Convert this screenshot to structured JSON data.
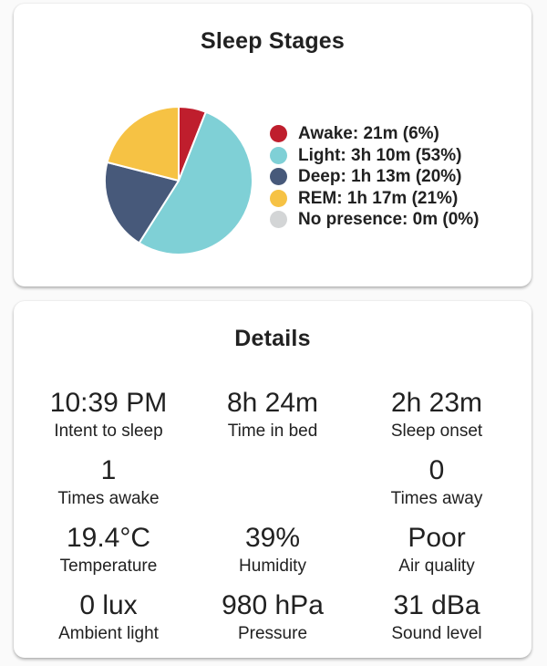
{
  "colors": {
    "page_bg": "#fafafa",
    "card_bg": "#ffffff",
    "text": "#212121",
    "awake_red": "#bf1e2d",
    "light_teal": "#7fd0d6",
    "deep_slate": "#47597a",
    "rem_amber": "#f6c244",
    "no_presence_gray": "#d3d5d6"
  },
  "sleep_card": {
    "title": "Sleep Stages"
  },
  "chart_data": {
    "type": "pie",
    "title": "Sleep Stages",
    "start_angle": "top",
    "direction": "clockwise",
    "legend_position": "right",
    "legend_format": "{label}: {duration} ({percent}%)",
    "slices": [
      {
        "label": "Awake",
        "duration": "21m",
        "percent": 6,
        "color": "#bf1e2d"
      },
      {
        "label": "Light",
        "duration": "3h 10m",
        "percent": 53,
        "color": "#7fd0d6"
      },
      {
        "label": "Deep",
        "duration": "1h 13m",
        "percent": 20,
        "color": "#47597a"
      },
      {
        "label": "REM",
        "duration": "1h 17m",
        "percent": 21,
        "color": "#f6c244"
      },
      {
        "label": "No presence",
        "duration": "0m",
        "percent": 0,
        "color": "#d3d5d6"
      }
    ]
  },
  "details_card": {
    "title": "Details",
    "rows": [
      [
        {
          "value": "10:39 PM",
          "label": "Intent to sleep"
        },
        {
          "value": "8h 24m",
          "label": "Time in bed"
        },
        {
          "value": "2h 23m",
          "label": "Sleep onset"
        }
      ],
      [
        {
          "value": "1",
          "label": "Times awake"
        },
        null,
        {
          "value": "0",
          "label": "Times away"
        }
      ],
      [
        {
          "value": "19.4°C",
          "label": "Temperature"
        },
        {
          "value": "39%",
          "label": "Humidity"
        },
        {
          "value": "Poor",
          "label": "Air quality"
        }
      ],
      [
        {
          "value": "0 lux",
          "label": "Ambient light"
        },
        {
          "value": "980 hPa",
          "label": "Pressure"
        },
        {
          "value": "31 dBa",
          "label": "Sound level"
        }
      ]
    ]
  }
}
